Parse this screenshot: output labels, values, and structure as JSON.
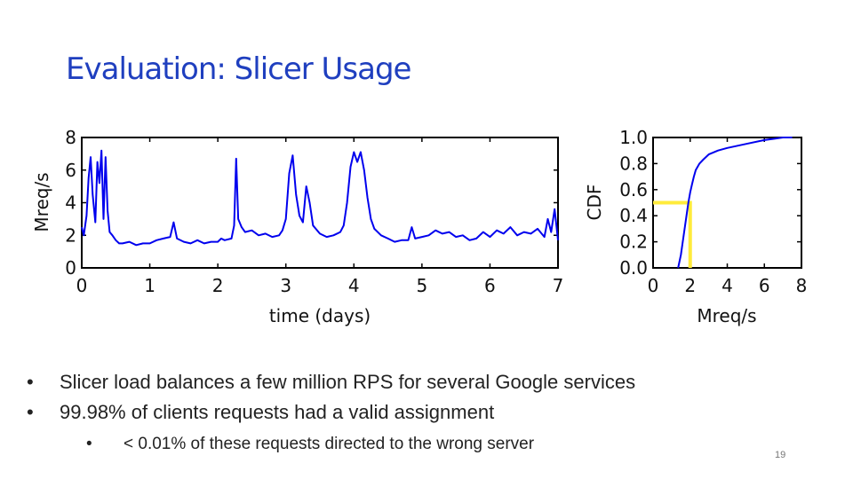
{
  "slide": {
    "title": "Evaluation: Slicer Usage",
    "bullets": [
      {
        "text": "Slicer load balances a few million RPS for several Google services"
      },
      {
        "text": "99.98% of clients requests had a valid assignment",
        "sub": [
          "< 0.01% of these requests directed to the wrong server"
        ]
      }
    ],
    "page_number": "19"
  },
  "chart_data": [
    {
      "type": "line",
      "xlabel": "time (days)",
      "ylabel": "Mreq/s",
      "xlim": [
        0,
        7
      ],
      "ylim": [
        0,
        8
      ],
      "xticks": [
        "0",
        "1",
        "2",
        "3",
        "4",
        "5",
        "6",
        "7"
      ],
      "yticks": [
        "0",
        "2",
        "4",
        "6",
        "8"
      ],
      "grid": false,
      "line_color": "#0000ee",
      "series": [
        {
          "x": [
            0,
            0.03,
            0.07,
            0.1,
            0.13,
            0.16,
            0.2,
            0.23,
            0.26,
            0.29,
            0.32,
            0.35,
            0.38,
            0.41,
            0.45,
            0.5,
            0.55,
            0.6,
            0.7,
            0.8,
            0.9,
            1.0,
            1.1,
            1.2,
            1.3,
            1.35,
            1.4,
            1.5,
            1.6,
            1.7,
            1.8,
            1.9,
            2.0,
            2.05,
            2.1,
            2.2,
            2.24,
            2.27,
            2.3,
            2.35,
            2.4,
            2.5,
            2.6,
            2.7,
            2.8,
            2.9,
            2.95,
            3.0,
            3.05,
            3.1,
            3.15,
            3.2,
            3.25,
            3.3,
            3.35,
            3.4,
            3.5,
            3.6,
            3.7,
            3.8,
            3.85,
            3.9,
            3.95,
            4.0,
            4.05,
            4.1,
            4.15,
            4.2,
            4.25,
            4.3,
            4.4,
            4.5,
            4.6,
            4.7,
            4.8,
            4.85,
            4.9,
            5.0,
            5.1,
            5.2,
            5.3,
            5.4,
            5.5,
            5.6,
            5.7,
            5.8,
            5.9,
            6.0,
            6.1,
            6.2,
            6.3,
            6.4,
            6.5,
            6.6,
            6.7,
            6.8,
            6.85,
            6.9,
            6.95,
            7.0
          ],
          "y": [
            2.5,
            2.0,
            3.2,
            5.5,
            6.8,
            4.5,
            2.8,
            6.5,
            5.2,
            7.2,
            3.0,
            6.8,
            3.5,
            2.2,
            2.0,
            1.7,
            1.5,
            1.5,
            1.6,
            1.4,
            1.5,
            1.5,
            1.7,
            1.8,
            1.9,
            2.8,
            1.8,
            1.6,
            1.5,
            1.7,
            1.5,
            1.6,
            1.6,
            1.8,
            1.7,
            1.8,
            2.6,
            6.7,
            3.0,
            2.5,
            2.2,
            2.3,
            2.0,
            2.1,
            1.9,
            2.0,
            2.3,
            3.0,
            5.8,
            6.9,
            4.5,
            3.2,
            2.8,
            5.0,
            4.0,
            2.6,
            2.1,
            1.9,
            2.0,
            2.2,
            2.6,
            4.0,
            6.2,
            7.1,
            6.5,
            7.1,
            6.0,
            4.3,
            3.0,
            2.4,
            2.0,
            1.8,
            1.6,
            1.7,
            1.7,
            2.5,
            1.8,
            1.9,
            2.0,
            2.3,
            2.1,
            2.2,
            1.9,
            2.0,
            1.7,
            1.8,
            2.2,
            1.9,
            2.3,
            2.1,
            2.5,
            2.0,
            2.2,
            2.1,
            2.4,
            1.9,
            3.0,
            2.2,
            3.6,
            1.7
          ]
        }
      ]
    },
    {
      "type": "line",
      "xlabel": "Mreq/s",
      "ylabel": "CDF",
      "xlim": [
        0,
        8
      ],
      "ylim": [
        0,
        1.0
      ],
      "xticks": [
        "0",
        "2",
        "4",
        "6",
        "8"
      ],
      "yticks": [
        "0.0",
        "0.2",
        "0.4",
        "0.6",
        "0.8",
        "1.0"
      ],
      "grid": false,
      "line_color": "#0000ee",
      "series": [
        {
          "x": [
            1.35,
            1.5,
            1.6,
            1.7,
            1.8,
            1.9,
            2.0,
            2.1,
            2.2,
            2.3,
            2.5,
            2.7,
            3.0,
            3.5,
            4.0,
            5.0,
            6.0,
            6.5,
            7.0,
            7.5
          ],
          "y": [
            0.0,
            0.1,
            0.2,
            0.3,
            0.4,
            0.5,
            0.58,
            0.64,
            0.7,
            0.75,
            0.8,
            0.83,
            0.87,
            0.9,
            0.92,
            0.95,
            0.98,
            0.99,
            1.0,
            1.0
          ]
        }
      ],
      "annotation": {
        "type": "yellow-bracket",
        "x": 2.0,
        "y": 0.5,
        "color": "#ffeb3b"
      }
    }
  ]
}
